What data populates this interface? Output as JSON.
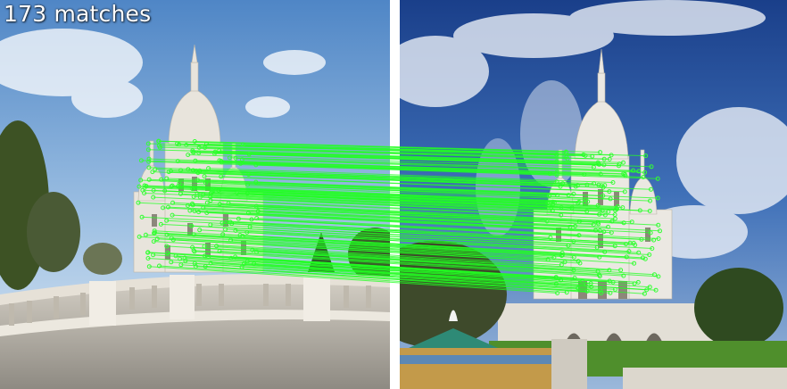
{
  "match_label": "173 matches",
  "match_count": 173,
  "colors": {
    "match_line": "#22ff22",
    "keypoint": "#33ff33",
    "left_sky_top": "#5d8fc9",
    "left_sky_bottom": "#cfe0f0",
    "right_sky_top": "#1f4f9e",
    "right_sky_bottom": "#8fb2d8",
    "stone": "#dcd7cc",
    "foliage": "#3c5a23",
    "lawn": "#4f8f2c"
  }
}
